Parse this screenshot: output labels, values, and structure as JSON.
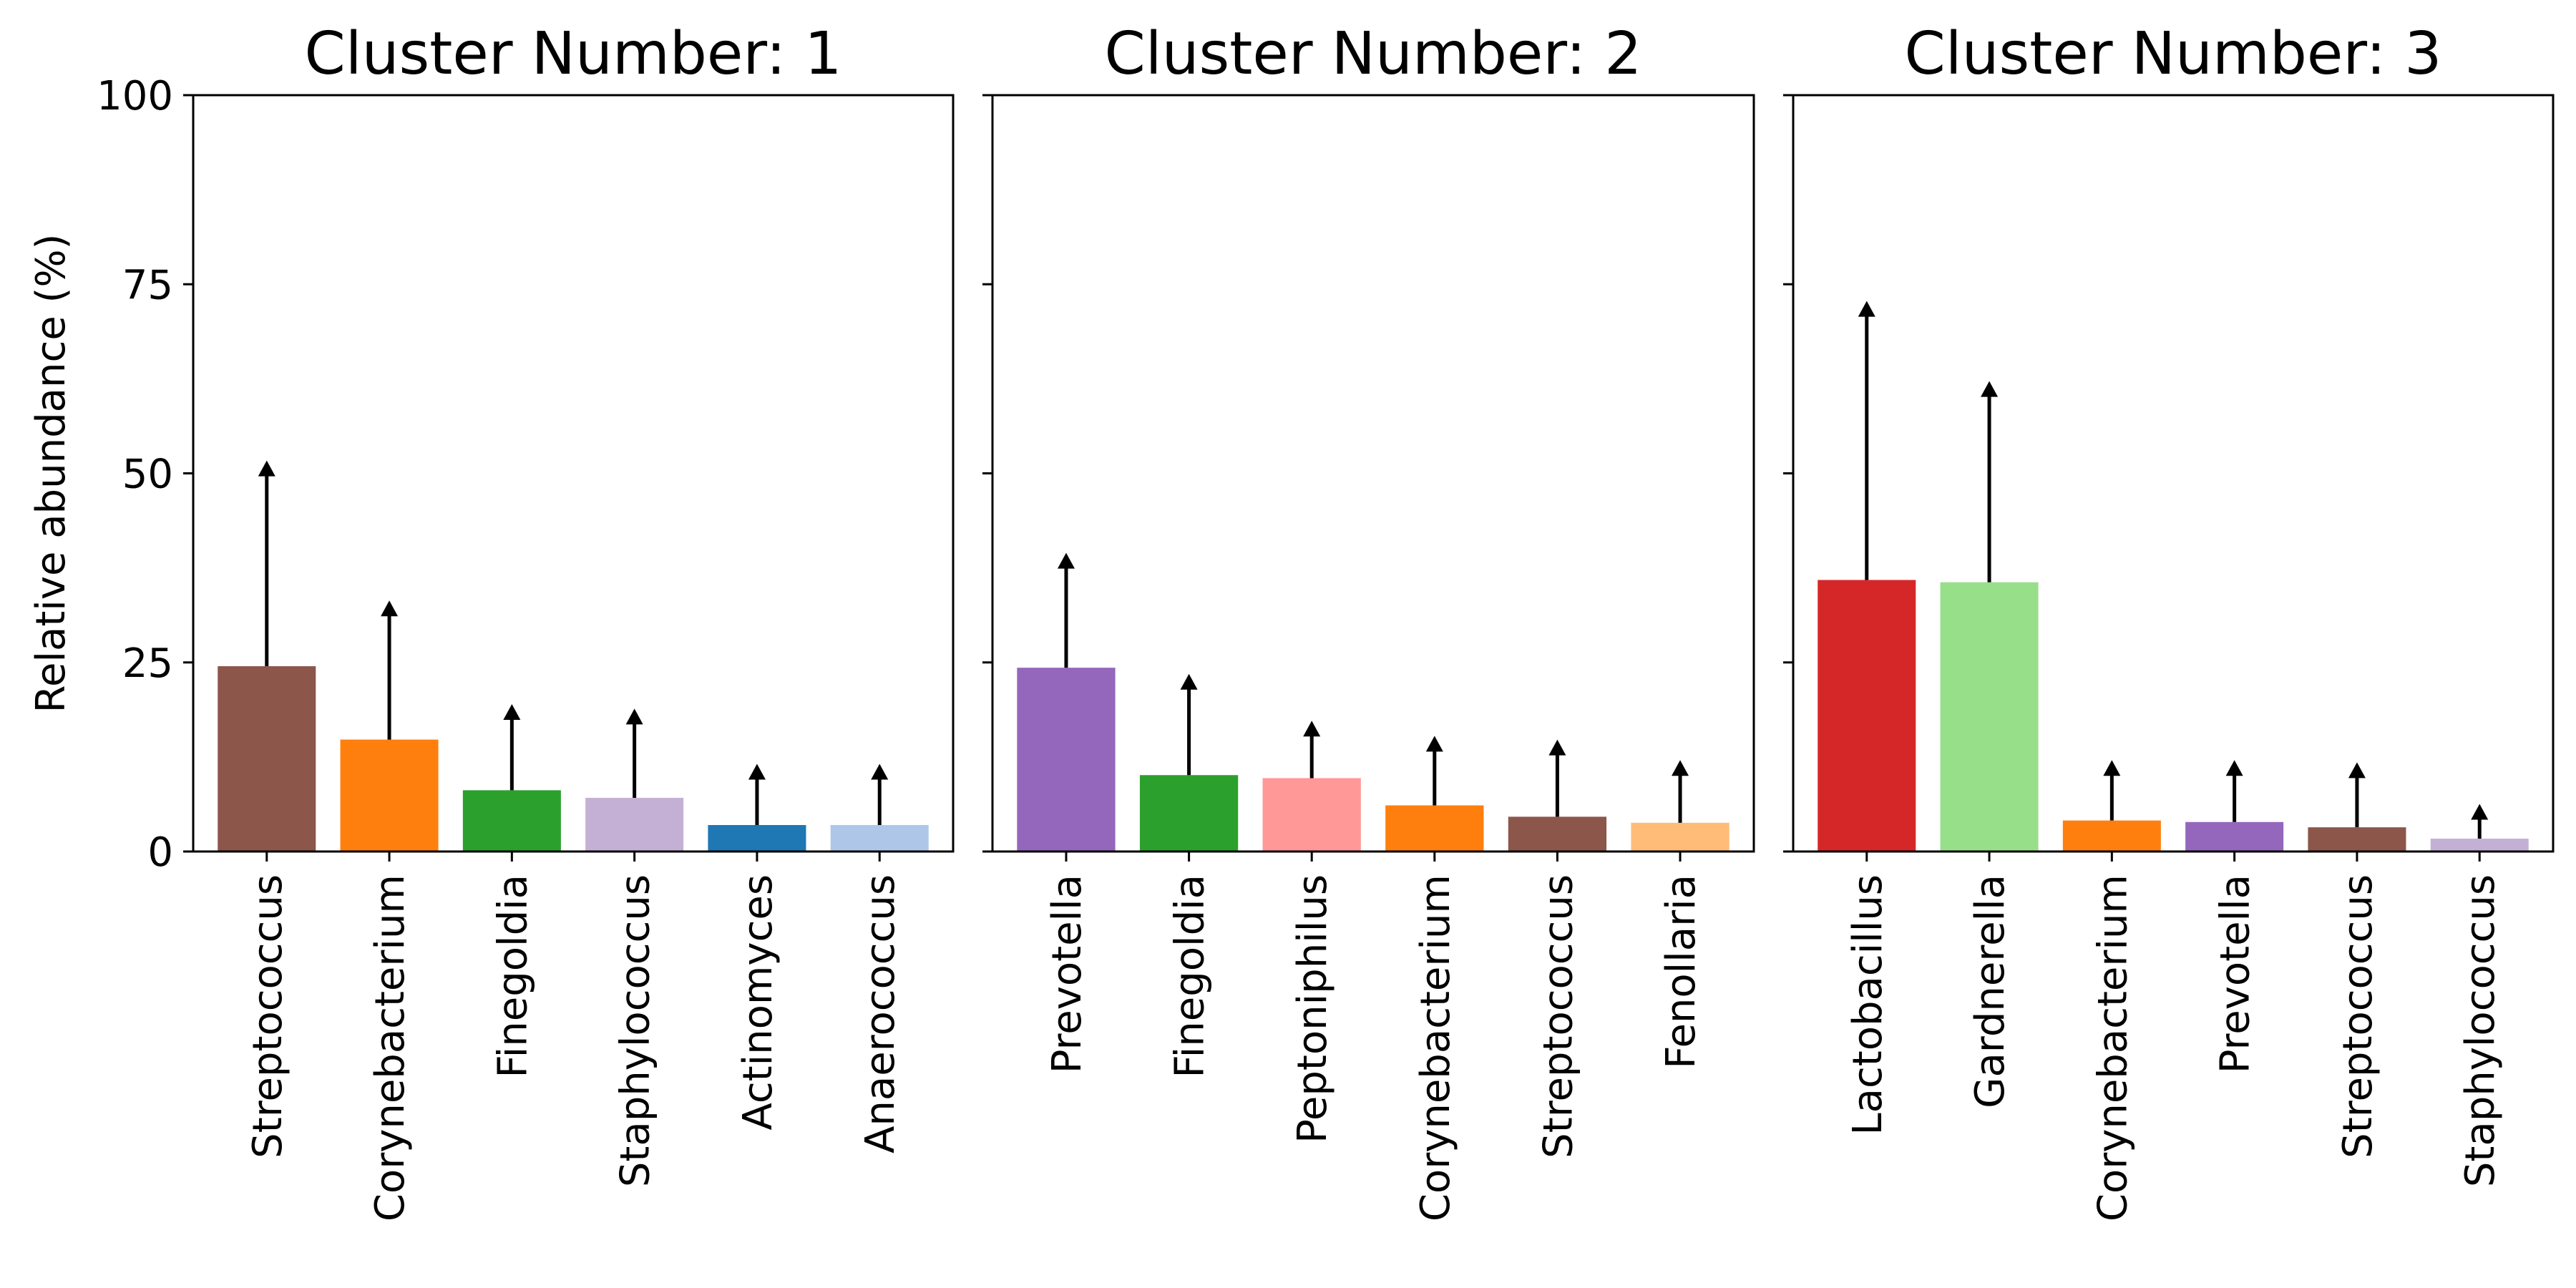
{
  "chart_data": [
    {
      "type": "bar",
      "title": "Cluster Number: 1",
      "ylabel": "Relative abundance (%)",
      "ylim": [
        0,
        100
      ],
      "yticks": [
        "0",
        "25",
        "50",
        "75",
        "100"
      ],
      "categories": [
        "Streptococcus",
        "Corynebacterium",
        "Finegoldia",
        "Staphylococcus",
        "Actinomyces",
        "Anaerococcus"
      ],
      "values": [
        24.5,
        14.8,
        8.1,
        7.1,
        3.5,
        3.5
      ],
      "error_upper": [
        51.5,
        33.0,
        19.3,
        18.7,
        11.4,
        11.4
      ],
      "colors": [
        "#8c564b",
        "#ff7f0e",
        "#2ca02c",
        "#c5b0d5",
        "#1f77b4",
        "#aec7e8"
      ]
    },
    {
      "type": "bar",
      "title": "Cluster Number: 2",
      "ylabel": "",
      "ylim": [
        0,
        100
      ],
      "categories": [
        "Prevotella",
        "Finegoldia",
        "Peptoniphilus",
        "Corynebacterium",
        "Streptococcus",
        "Fenollaria"
      ],
      "values": [
        24.3,
        10.1,
        9.7,
        6.1,
        4.6,
        3.8
      ],
      "error_upper": [
        39.3,
        23.3,
        17.1,
        15.1,
        14.6,
        11.9
      ],
      "colors": [
        "#9467bd",
        "#2ca02c",
        "#ff9896",
        "#ff7f0e",
        "#8c564b",
        "#ffbb78"
      ]
    },
    {
      "type": "bar",
      "title": "Cluster Number: 3",
      "ylabel": "",
      "ylim": [
        0,
        100
      ],
      "categories": [
        "Lactobacillus",
        "Gardnerella",
        "Corynebacterium",
        "Prevotella",
        "Streptococcus",
        "Staphylococcus"
      ],
      "values": [
        35.9,
        35.6,
        4.1,
        3.9,
        3.2,
        1.7
      ],
      "error_upper": [
        72.6,
        62.0,
        11.9,
        11.9,
        11.6,
        6.1
      ],
      "colors": [
        "#d62728",
        "#98df8a",
        "#ff7f0e",
        "#9467bd",
        "#8c564b",
        "#c5b0d5"
      ]
    }
  ]
}
